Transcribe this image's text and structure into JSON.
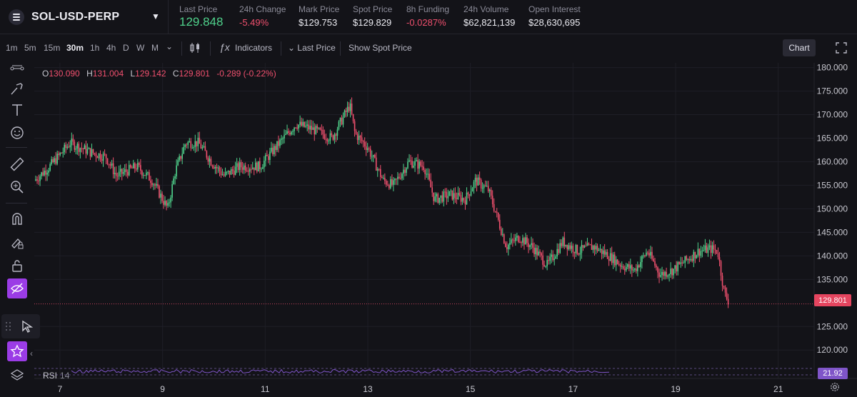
{
  "market": {
    "name": "SOL-USD-PERP"
  },
  "stats": [
    {
      "label": "Last Price",
      "value": "129.848"
    },
    {
      "label": "24h Change",
      "value": "-5.49%"
    },
    {
      "label": "Mark Price",
      "value": "$129.753"
    },
    {
      "label": "Spot Price",
      "value": "$129.829"
    },
    {
      "label": "8h Funding",
      "value": "-0.0287%"
    },
    {
      "label": "24h Volume",
      "value": "$62,821,139"
    },
    {
      "label": "Open Interest",
      "value": "$28,630,695"
    }
  ],
  "toolbar": {
    "timeframes": [
      "1m",
      "5m",
      "15m",
      "30m",
      "1h",
      "4h",
      "D",
      "W",
      "M"
    ],
    "active_timeframe": "30m",
    "indicators_label": "Indicators",
    "last_price_label": "Last Price",
    "spot_label": "Show Spot Price",
    "chart_label": "Chart"
  },
  "ohlc": {
    "o_key": "O",
    "o": "130.090",
    "h_key": "H",
    "h": "131.004",
    "l_key": "L",
    "l": "129.142",
    "c_key": "C",
    "c": "129.801",
    "change": "-0.289 (-0.22%)"
  },
  "current_price_tag": "129.801",
  "rsi": {
    "label": "RSI",
    "period": "14",
    "value": "21.92"
  },
  "colors": {
    "up": "#4fd18b",
    "down": "#f0506e",
    "accent": "#9b3ce6",
    "rsi": "#7f55c8"
  },
  "chart_data": {
    "type": "candlestick",
    "y_ticks": [
      "180.000",
      "175.000",
      "170.000",
      "165.000",
      "160.000",
      "155.000",
      "150.000",
      "145.000",
      "140.000",
      "135.000",
      "125.000",
      "120.000"
    ],
    "ylim": [
      117,
      181
    ],
    "x_ticks": [
      "7",
      "9",
      "11",
      "13",
      "15",
      "17",
      "19",
      "21"
    ],
    "x_tick_days": [
      7,
      9,
      11,
      13,
      15,
      17,
      19,
      21
    ],
    "xlim": [
      6.5,
      21.7
    ],
    "last_day": 17.85,
    "price_path": [
      [
        6.5,
        156
      ],
      [
        6.8,
        159
      ],
      [
        7.2,
        164
      ],
      [
        7.6,
        162
      ],
      [
        7.9,
        161
      ],
      [
        8.1,
        157
      ],
      [
        8.5,
        159
      ],
      [
        8.8,
        156
      ],
      [
        9.1,
        150
      ],
      [
        9.25,
        158
      ],
      [
        9.45,
        164
      ],
      [
        9.7,
        164
      ],
      [
        9.95,
        160
      ],
      [
        10.2,
        157
      ],
      [
        10.5,
        159
      ],
      [
        10.9,
        159
      ],
      [
        11.2,
        163
      ],
      [
        11.6,
        168
      ],
      [
        11.9,
        167
      ],
      [
        12.1,
        166
      ],
      [
        12.3,
        165
      ],
      [
        12.5,
        169
      ],
      [
        12.65,
        172
      ],
      [
        12.75,
        166
      ],
      [
        13.0,
        163
      ],
      [
        13.3,
        156
      ],
      [
        13.5,
        155
      ],
      [
        13.8,
        160
      ],
      [
        14.1,
        159
      ],
      [
        14.3,
        152
      ],
      [
        14.6,
        153
      ],
      [
        14.9,
        152
      ],
      [
        15.1,
        156
      ],
      [
        15.35,
        154
      ],
      [
        15.5,
        149
      ],
      [
        15.7,
        142
      ],
      [
        15.95,
        144
      ],
      [
        16.2,
        142
      ],
      [
        16.5,
        138
      ],
      [
        16.8,
        143
      ],
      [
        17.1,
        141
      ],
      [
        17.4,
        142
      ],
      [
        17.7,
        140
      ],
      [
        17.95,
        138
      ],
      [
        18.2,
        137
      ],
      [
        18.45,
        141
      ],
      [
        18.7,
        136
      ],
      [
        18.95,
        137
      ],
      [
        19.2,
        139
      ],
      [
        19.45,
        141
      ],
      [
        19.7,
        141.5
      ],
      [
        19.82,
        141
      ],
      [
        19.95,
        132
      ],
      [
        20.05,
        130
      ]
    ]
  }
}
